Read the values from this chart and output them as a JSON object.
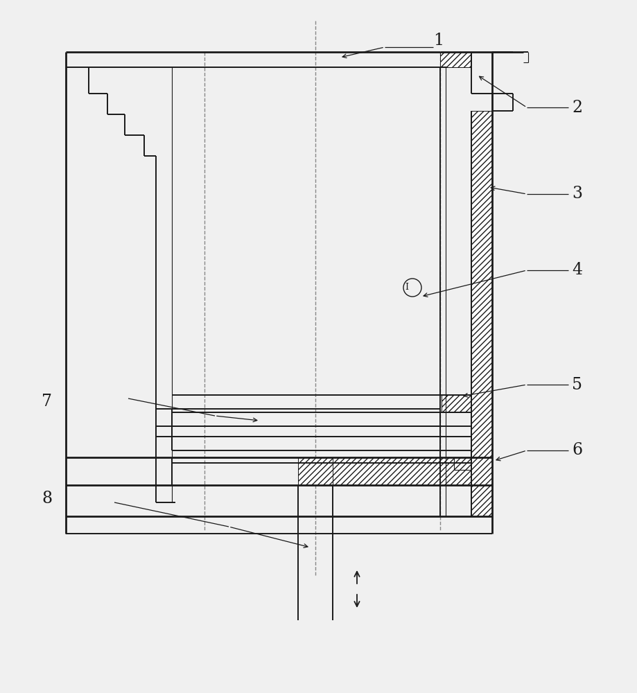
{
  "bg_color": "#f0f0f0",
  "line_color": "#1a1a1a",
  "lw1": 0.8,
  "lw2": 1.4,
  "lw3": 2.0,
  "lw_dash": 1.0,
  "dash_color": "#888888"
}
